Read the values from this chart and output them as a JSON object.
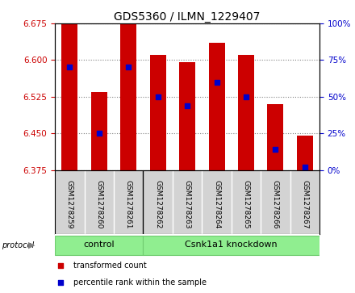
{
  "title": "GDS5360 / ILMN_1229407",
  "samples": [
    "GSM1278259",
    "GSM1278260",
    "GSM1278261",
    "GSM1278262",
    "GSM1278263",
    "GSM1278264",
    "GSM1278265",
    "GSM1278266",
    "GSM1278267"
  ],
  "bar_tops": [
    6.675,
    6.535,
    6.675,
    6.61,
    6.595,
    6.635,
    6.61,
    6.51,
    6.445
  ],
  "percentile_ranks": [
    70,
    25,
    70,
    50,
    44,
    60,
    50,
    14,
    2
  ],
  "bar_bottom": 6.375,
  "ylim_left": [
    6.375,
    6.675
  ],
  "ylim_right": [
    0,
    100
  ],
  "yticks_left": [
    6.375,
    6.45,
    6.525,
    6.6,
    6.675
  ],
  "yticks_right": [
    0,
    25,
    50,
    75,
    100
  ],
  "bar_color": "#cc0000",
  "dot_color": "#0000cc",
  "bar_width": 0.55,
  "control_count": 3,
  "groups": [
    {
      "label": "control",
      "start": 0,
      "end": 3,
      "color": "#90ee90"
    },
    {
      "label": "Csnk1a1 knockdown",
      "start": 3,
      "end": 9,
      "color": "#90ee90"
    }
  ],
  "protocol_label": "protocol",
  "legend_items": [
    {
      "label": "transformed count",
      "color": "#cc0000"
    },
    {
      "label": "percentile rank within the sample",
      "color": "#0000cc"
    }
  ],
  "bg_color": "#ffffff",
  "plot_bg_color": "#ffffff",
  "tick_area_bg": "#d3d3d3",
  "title_fontsize": 10,
  "tick_label_color_left": "#cc0000",
  "tick_label_color_right": "#0000cc",
  "grid_color": "#000000",
  "grid_alpha": 0.5
}
